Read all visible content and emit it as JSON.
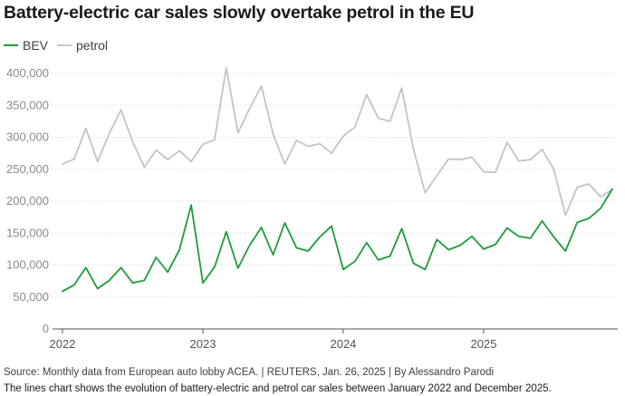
{
  "header": {
    "title": "Battery-electric car sales slowly overtake petrol in the EU"
  },
  "footer": {
    "source": "Source: Monthly data from European auto lobby ACEA. | REUTERS, Jan. 26, 2025 | By Alessandro Parodi",
    "caption": "The lines chart shows the evolution of battery-electric and petrol car sales between January 2022 and December 2025."
  },
  "chart_data": {
    "type": "line",
    "title": "Battery-electric car sales slowly overtake petrol in the EU",
    "xlabel": "",
    "ylabel": "",
    "ylim": [
      0,
      400000
    ],
    "yticks": [
      0,
      50000,
      100000,
      150000,
      200000,
      250000,
      300000,
      350000,
      400000
    ],
    "ytick_labels": [
      "0",
      "50,000",
      "100,000",
      "150,000",
      "200,000",
      "250,000",
      "300,000",
      "350,000",
      "400,000"
    ],
    "xticks": [
      "2022",
      "2023",
      "2024",
      "2025"
    ],
    "grid": "horizontal",
    "legend_position": "top-left",
    "x": [
      "2022-01",
      "2022-02",
      "2022-03",
      "2022-04",
      "2022-05",
      "2022-06",
      "2022-07",
      "2022-08",
      "2022-09",
      "2022-10",
      "2022-11",
      "2022-12",
      "2023-01",
      "2023-02",
      "2023-03",
      "2023-04",
      "2023-05",
      "2023-06",
      "2023-07",
      "2023-08",
      "2023-09",
      "2023-10",
      "2023-11",
      "2023-12",
      "2024-01",
      "2024-02",
      "2024-03",
      "2024-04",
      "2024-05",
      "2024-06",
      "2024-07",
      "2024-08",
      "2024-09",
      "2024-10",
      "2024-11",
      "2024-12",
      "2025-01",
      "2025-02",
      "2025-03",
      "2025-04",
      "2025-05",
      "2025-06",
      "2025-07",
      "2025-08",
      "2025-09",
      "2025-10",
      "2025-11",
      "2025-12"
    ],
    "series": [
      {
        "name": "BEV",
        "color": "#1f9a3c",
        "values": [
          59000,
          69000,
          96000,
          63000,
          76000,
          96000,
          72000,
          76000,
          112000,
          89000,
          124000,
          194000,
          72000,
          97000,
          152000,
          95000,
          131000,
          159000,
          116000,
          166000,
          127000,
          122000,
          144000,
          161000,
          93000,
          106000,
          135000,
          108000,
          114000,
          157000,
          103000,
          93000,
          140000,
          124000,
          131000,
          145000,
          125000,
          132000,
          158000,
          145000,
          142000,
          169000,
          144000,
          122000,
          167000,
          173000,
          189000,
          219000
        ]
      },
      {
        "name": "petrol",
        "color": "#c4c4c4",
        "values": [
          258000,
          266000,
          314000,
          262000,
          306000,
          343000,
          293000,
          253000,
          280000,
          265000,
          279000,
          262000,
          289000,
          296000,
          409000,
          307000,
          345000,
          380000,
          305000,
          258000,
          295000,
          286000,
          290000,
          275000,
          302000,
          316000,
          367000,
          330000,
          325000,
          377000,
          282000,
          213000,
          240000,
          266000,
          265000,
          269000,
          246000,
          245000,
          292000,
          263000,
          265000,
          281000,
          250000,
          178000,
          222000,
          227000,
          207000,
          218000
        ]
      }
    ]
  }
}
